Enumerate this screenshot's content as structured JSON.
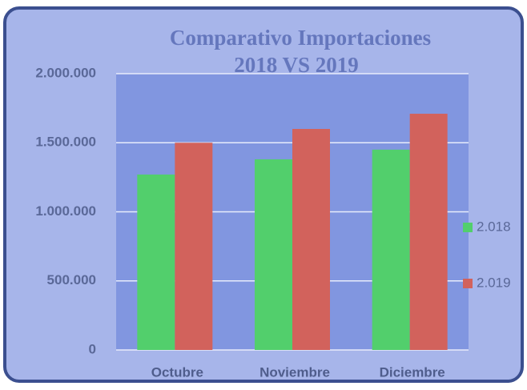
{
  "chart_data": {
    "type": "bar",
    "title": [
      "Comparativo Importaciones",
      "2018 VS 2019"
    ],
    "categories": [
      "Octubre",
      "Noviembre",
      "Diciembre"
    ],
    "series": [
      {
        "name": "2.018",
        "color": "#52cf6c",
        "values": [
          1270000,
          1380000,
          1450000
        ]
      },
      {
        "name": "2.019",
        "color": "#d2625c",
        "values": [
          1500000,
          1600000,
          1710000
        ]
      }
    ],
    "ylim": [
      0,
      2000000
    ],
    "yticks": [
      0,
      {
        "value": 500000,
        "label": "500.000"
      },
      {
        "value": 1000000,
        "label": "1.000.000"
      },
      {
        "value": 1500000,
        "label": "1.500.000"
      },
      {
        "value": 2000000,
        "label": "2.000.000"
      }
    ],
    "grid": true,
    "legend": "right"
  }
}
